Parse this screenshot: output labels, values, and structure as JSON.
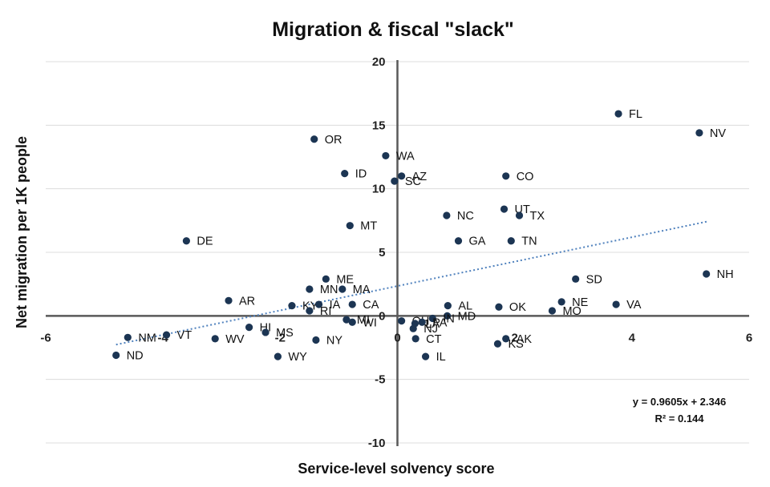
{
  "chart_data": {
    "type": "scatter",
    "title": "Migration & fiscal \"slack\"",
    "xlabel": "Service-level solvency score",
    "ylabel": "Net migration per 1K people",
    "xlim": [
      -6,
      6
    ],
    "ylim": [
      -10,
      20
    ],
    "x_ticks": [
      -6,
      -4,
      -2,
      0,
      2,
      4,
      6
    ],
    "y_ticks": [
      -10,
      -5,
      0,
      5,
      10,
      15,
      20
    ],
    "x_tick_labels": [
      "-6",
      "-4",
      "-2",
      "0",
      "2",
      "4",
      "6"
    ],
    "y_tick_labels": [
      "-10",
      "-5",
      "0",
      "5",
      "10",
      "15",
      "20"
    ],
    "grid": "horizontal",
    "trendline": {
      "style": "dotted",
      "slope": 0.9605,
      "intercept": 2.346,
      "x_range": [
        -4.8,
        5.3
      ],
      "equation": "y = 0.9605x + 2.346",
      "r_squared": "R² = 0.144"
    },
    "points": [
      {
        "label": "FL",
        "x": 3.77,
        "y": 15.9
      },
      {
        "label": "NV",
        "x": 5.15,
        "y": 14.4
      },
      {
        "label": "OR",
        "x": -1.42,
        "y": 13.9
      },
      {
        "label": "WA",
        "x": -0.2,
        "y": 12.6
      },
      {
        "label": "ID",
        "x": -0.9,
        "y": 11.2
      },
      {
        "label": "AZ",
        "x": 0.07,
        "y": 11.0
      },
      {
        "label": "SC",
        "x": -0.05,
        "y": 10.6
      },
      {
        "label": "CO",
        "x": 1.85,
        "y": 11.0
      },
      {
        "label": "UT",
        "x": 1.82,
        "y": 8.4
      },
      {
        "label": "TX",
        "x": 2.08,
        "y": 7.9
      },
      {
        "label": "NC",
        "x": 0.84,
        "y": 7.9
      },
      {
        "label": "MT",
        "x": -0.81,
        "y": 7.1
      },
      {
        "label": "DE",
        "x": -3.6,
        "y": 5.9
      },
      {
        "label": "GA",
        "x": 1.04,
        "y": 5.9
      },
      {
        "label": "TN",
        "x": 1.94,
        "y": 5.9
      },
      {
        "label": "NH",
        "x": 5.27,
        "y": 3.3
      },
      {
        "label": "SD",
        "x": 3.04,
        "y": 2.9
      },
      {
        "label": "ME",
        "x": -1.22,
        "y": 2.9
      },
      {
        "label": "MN",
        "x": -1.5,
        "y": 2.1
      },
      {
        "label": "MA",
        "x": -0.94,
        "y": 2.1
      },
      {
        "label": "AR",
        "x": -2.88,
        "y": 1.2
      },
      {
        "label": "KY",
        "x": -1.8,
        "y": 0.8
      },
      {
        "label": "IA",
        "x": -1.34,
        "y": 0.9
      },
      {
        "label": "CA",
        "x": -0.77,
        "y": 0.9
      },
      {
        "label": "RI",
        "x": -1.5,
        "y": 0.4
      },
      {
        "label": "AL",
        "x": 0.86,
        "y": 0.8
      },
      {
        "label": "OK",
        "x": 1.73,
        "y": 0.7
      },
      {
        "label": "NE",
        "x": 2.8,
        "y": 1.1
      },
      {
        "label": "VA",
        "x": 3.73,
        "y": 0.9
      },
      {
        "label": "MO",
        "x": 2.64,
        "y": 0.4
      },
      {
        "label": "MD",
        "x": 0.85,
        "y": 0.0
      },
      {
        "label": "IN",
        "x": 0.6,
        "y": -0.2
      },
      {
        "label": "MI",
        "x": -0.87,
        "y": -0.3
      },
      {
        "label": "WI",
        "x": -0.77,
        "y": -0.5
      },
      {
        "label": "OH",
        "x": 0.07,
        "y": -0.4
      },
      {
        "label": "PA",
        "x": 0.42,
        "y": -0.5
      },
      {
        "label": "LA",
        "x": 0.3,
        "y": -0.6
      },
      {
        "label": "NJ",
        "x": 0.27,
        "y": -1.0
      },
      {
        "label": "HI",
        "x": -2.53,
        "y": -0.9
      },
      {
        "label": "MS",
        "x": -2.25,
        "y": -1.3
      },
      {
        "label": "NM",
        "x": -4.6,
        "y": -1.7
      },
      {
        "label": "VT",
        "x": -3.94,
        "y": -1.5
      },
      {
        "label": "WV",
        "x": -3.11,
        "y": -1.8
      },
      {
        "label": "NY",
        "x": -1.39,
        "y": -1.9
      },
      {
        "label": "CT",
        "x": 0.31,
        "y": -1.8
      },
      {
        "label": "AK",
        "x": 1.85,
        "y": -1.8
      },
      {
        "label": "KS",
        "x": 1.71,
        "y": -2.2
      },
      {
        "label": "ND",
        "x": -4.8,
        "y": -3.1
      },
      {
        "label": "WY",
        "x": -2.04,
        "y": -3.2
      },
      {
        "label": "IL",
        "x": 0.48,
        "y": -3.2
      }
    ]
  }
}
